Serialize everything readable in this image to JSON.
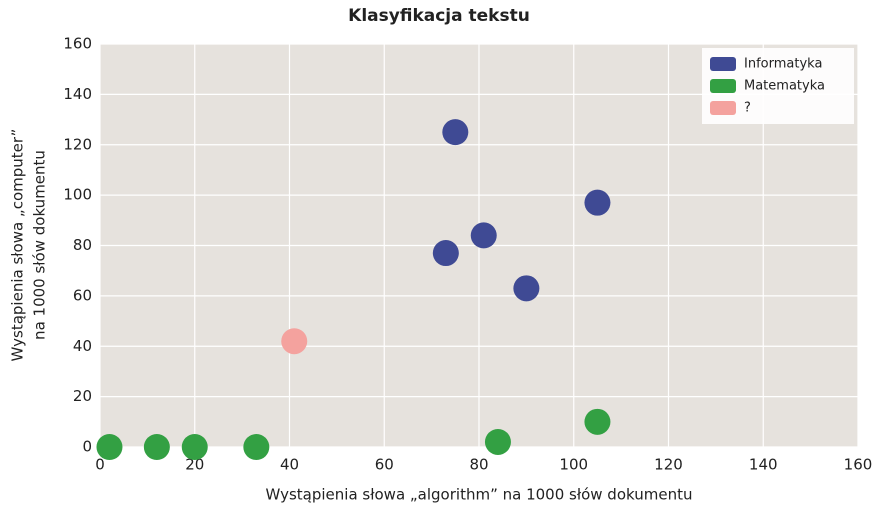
{
  "chart_data": {
    "type": "scatter",
    "title": "Klasyfikacja tekstu",
    "xlabel": "Wystąpienia słowa „algorithm” na 1000 słów dokumentu",
    "ylabel": [
      "Wystąpienia słowa „computer”",
      "na 1000 słów dokumentu"
    ],
    "xlim": [
      0,
      160
    ],
    "ylim": [
      0,
      160
    ],
    "xticks": [
      0,
      20,
      40,
      60,
      80,
      100,
      120,
      140,
      160
    ],
    "yticks": [
      0,
      20,
      40,
      60,
      80,
      100,
      120,
      140,
      160
    ],
    "grid": true,
    "legend": "upper right",
    "series": [
      {
        "name": "Informatyka",
        "color": "#3f4a94",
        "x": [
          75,
          105,
          81,
          73,
          90
        ],
        "values": [
          125,
          97,
          84,
          77,
          63
        ]
      },
      {
        "name": "Matematyka",
        "color": "#33a043",
        "x": [
          2,
          12,
          20,
          33,
          84,
          105
        ],
        "values": [
          0,
          0,
          0,
          0,
          2,
          10
        ]
      },
      {
        "name": "?",
        "color": "#f4a29e",
        "x": [
          41
        ],
        "values": [
          42
        ]
      }
    ]
  }
}
